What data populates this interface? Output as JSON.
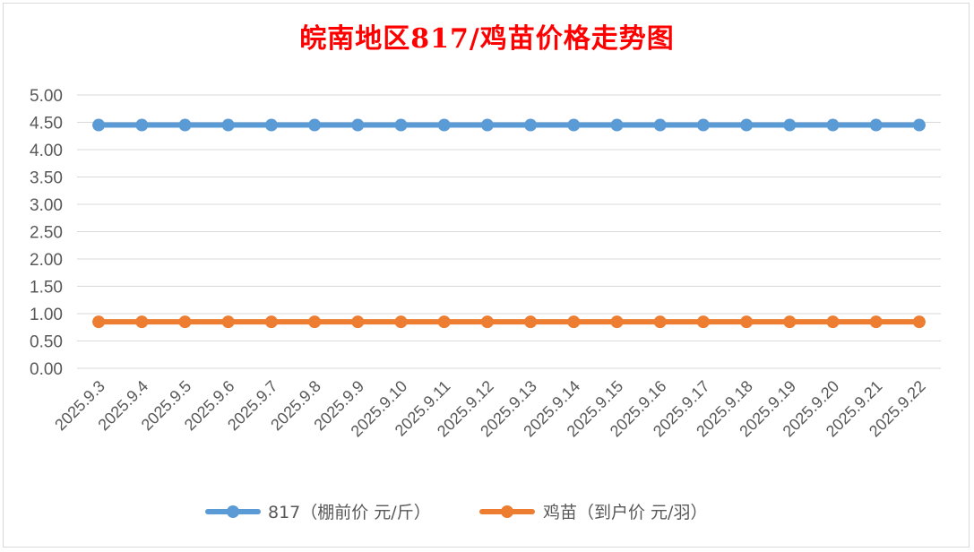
{
  "chart_data": {
    "type": "line",
    "title": "皖南地区817/鸡苗价格走势图",
    "categories": [
      "2025.9.3",
      "2025.9.4",
      "2025.9.5",
      "2025.9.6",
      "2025.9.7",
      "2025.9.8",
      "2025.9.9",
      "2025.9.10",
      "2025.9.11",
      "2025.9.12",
      "2025.9.13",
      "2025.9.14",
      "2025.9.15",
      "2025.9.16",
      "2025.9.17",
      "2025.9.18",
      "2025.9.19",
      "2025.9.20",
      "2025.9.21",
      "2025.9.22"
    ],
    "series": [
      {
        "name": "817（棚前价 元/斤）",
        "color": "#5b9bd5",
        "values": [
          4.45,
          4.45,
          4.45,
          4.45,
          4.45,
          4.45,
          4.45,
          4.45,
          4.45,
          4.45,
          4.45,
          4.45,
          4.45,
          4.45,
          4.45,
          4.45,
          4.45,
          4.45,
          4.45,
          4.45
        ]
      },
      {
        "name": "鸡苗（到户价 元/羽）",
        "color": "#ed7d31",
        "values": [
          0.85,
          0.85,
          0.85,
          0.85,
          0.85,
          0.85,
          0.85,
          0.85,
          0.85,
          0.85,
          0.85,
          0.85,
          0.85,
          0.85,
          0.85,
          0.85,
          0.85,
          0.85,
          0.85,
          0.85
        ]
      }
    ],
    "yticks": [
      "0.00",
      "0.50",
      "1.00",
      "1.50",
      "2.00",
      "2.50",
      "3.00",
      "3.50",
      "4.00",
      "4.50",
      "5.00"
    ],
    "ylim": [
      0,
      5
    ],
    "grid": true,
    "legend": "bottom",
    "xlabel": "",
    "ylabel": ""
  }
}
